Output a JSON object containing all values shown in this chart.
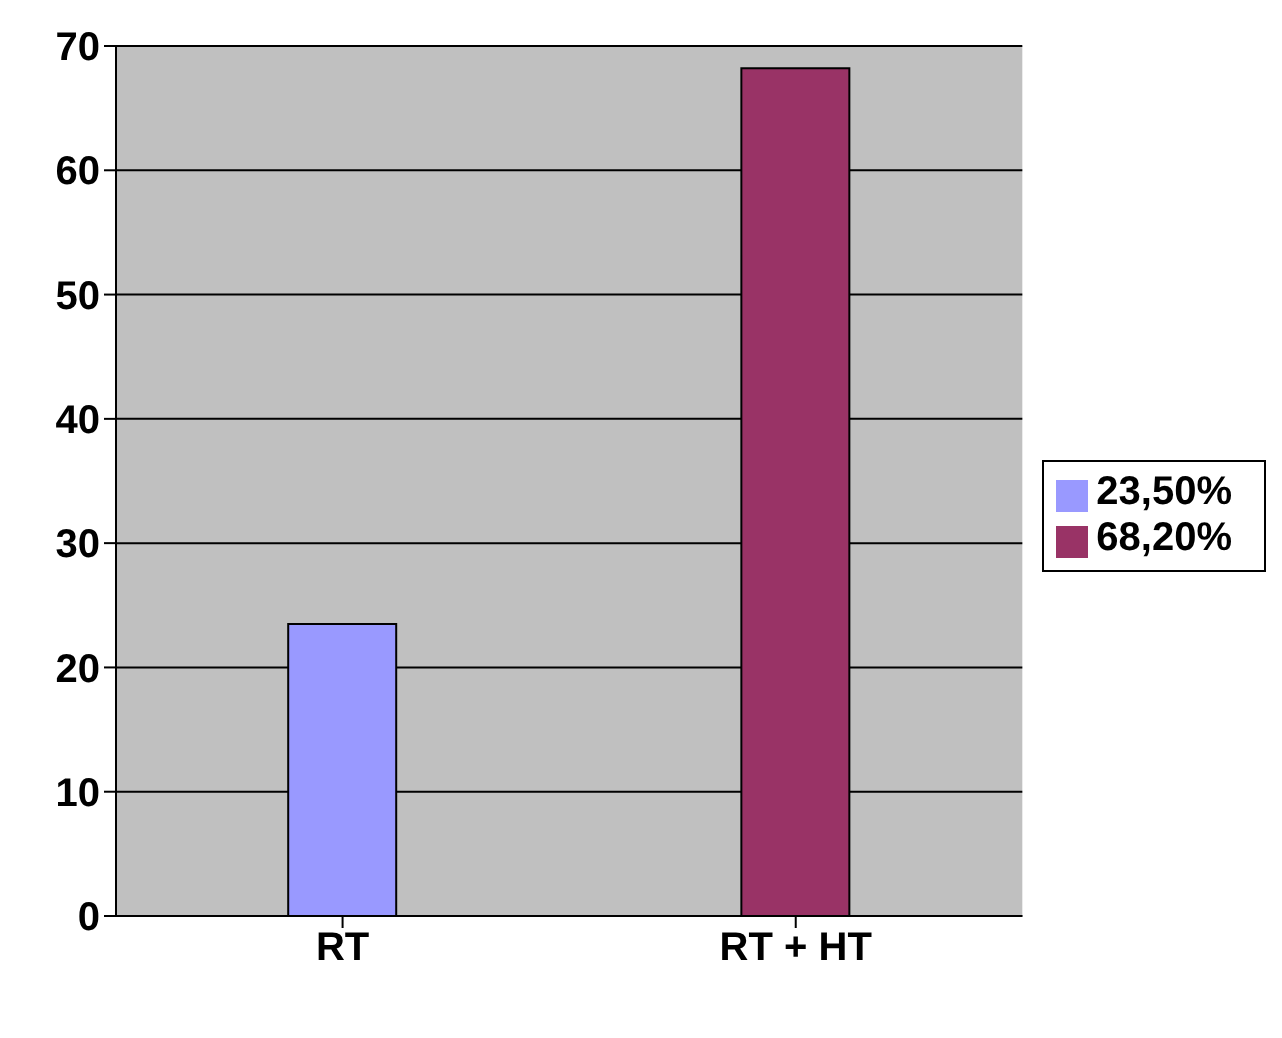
{
  "chart_data": {
    "type": "bar",
    "categories": [
      "RT",
      "RT + HT"
    ],
    "series": [
      {
        "name": "23,50%",
        "color": "#9999ff",
        "values": [
          23.5,
          null
        ]
      },
      {
        "name": "68,20%",
        "color": "#993366",
        "values": [
          null,
          68.2
        ]
      }
    ],
    "ylim": [
      0,
      70
    ],
    "yticks": [
      0,
      10,
      20,
      30,
      40,
      50,
      60,
      70
    ],
    "grid": "y",
    "legend": "right"
  }
}
